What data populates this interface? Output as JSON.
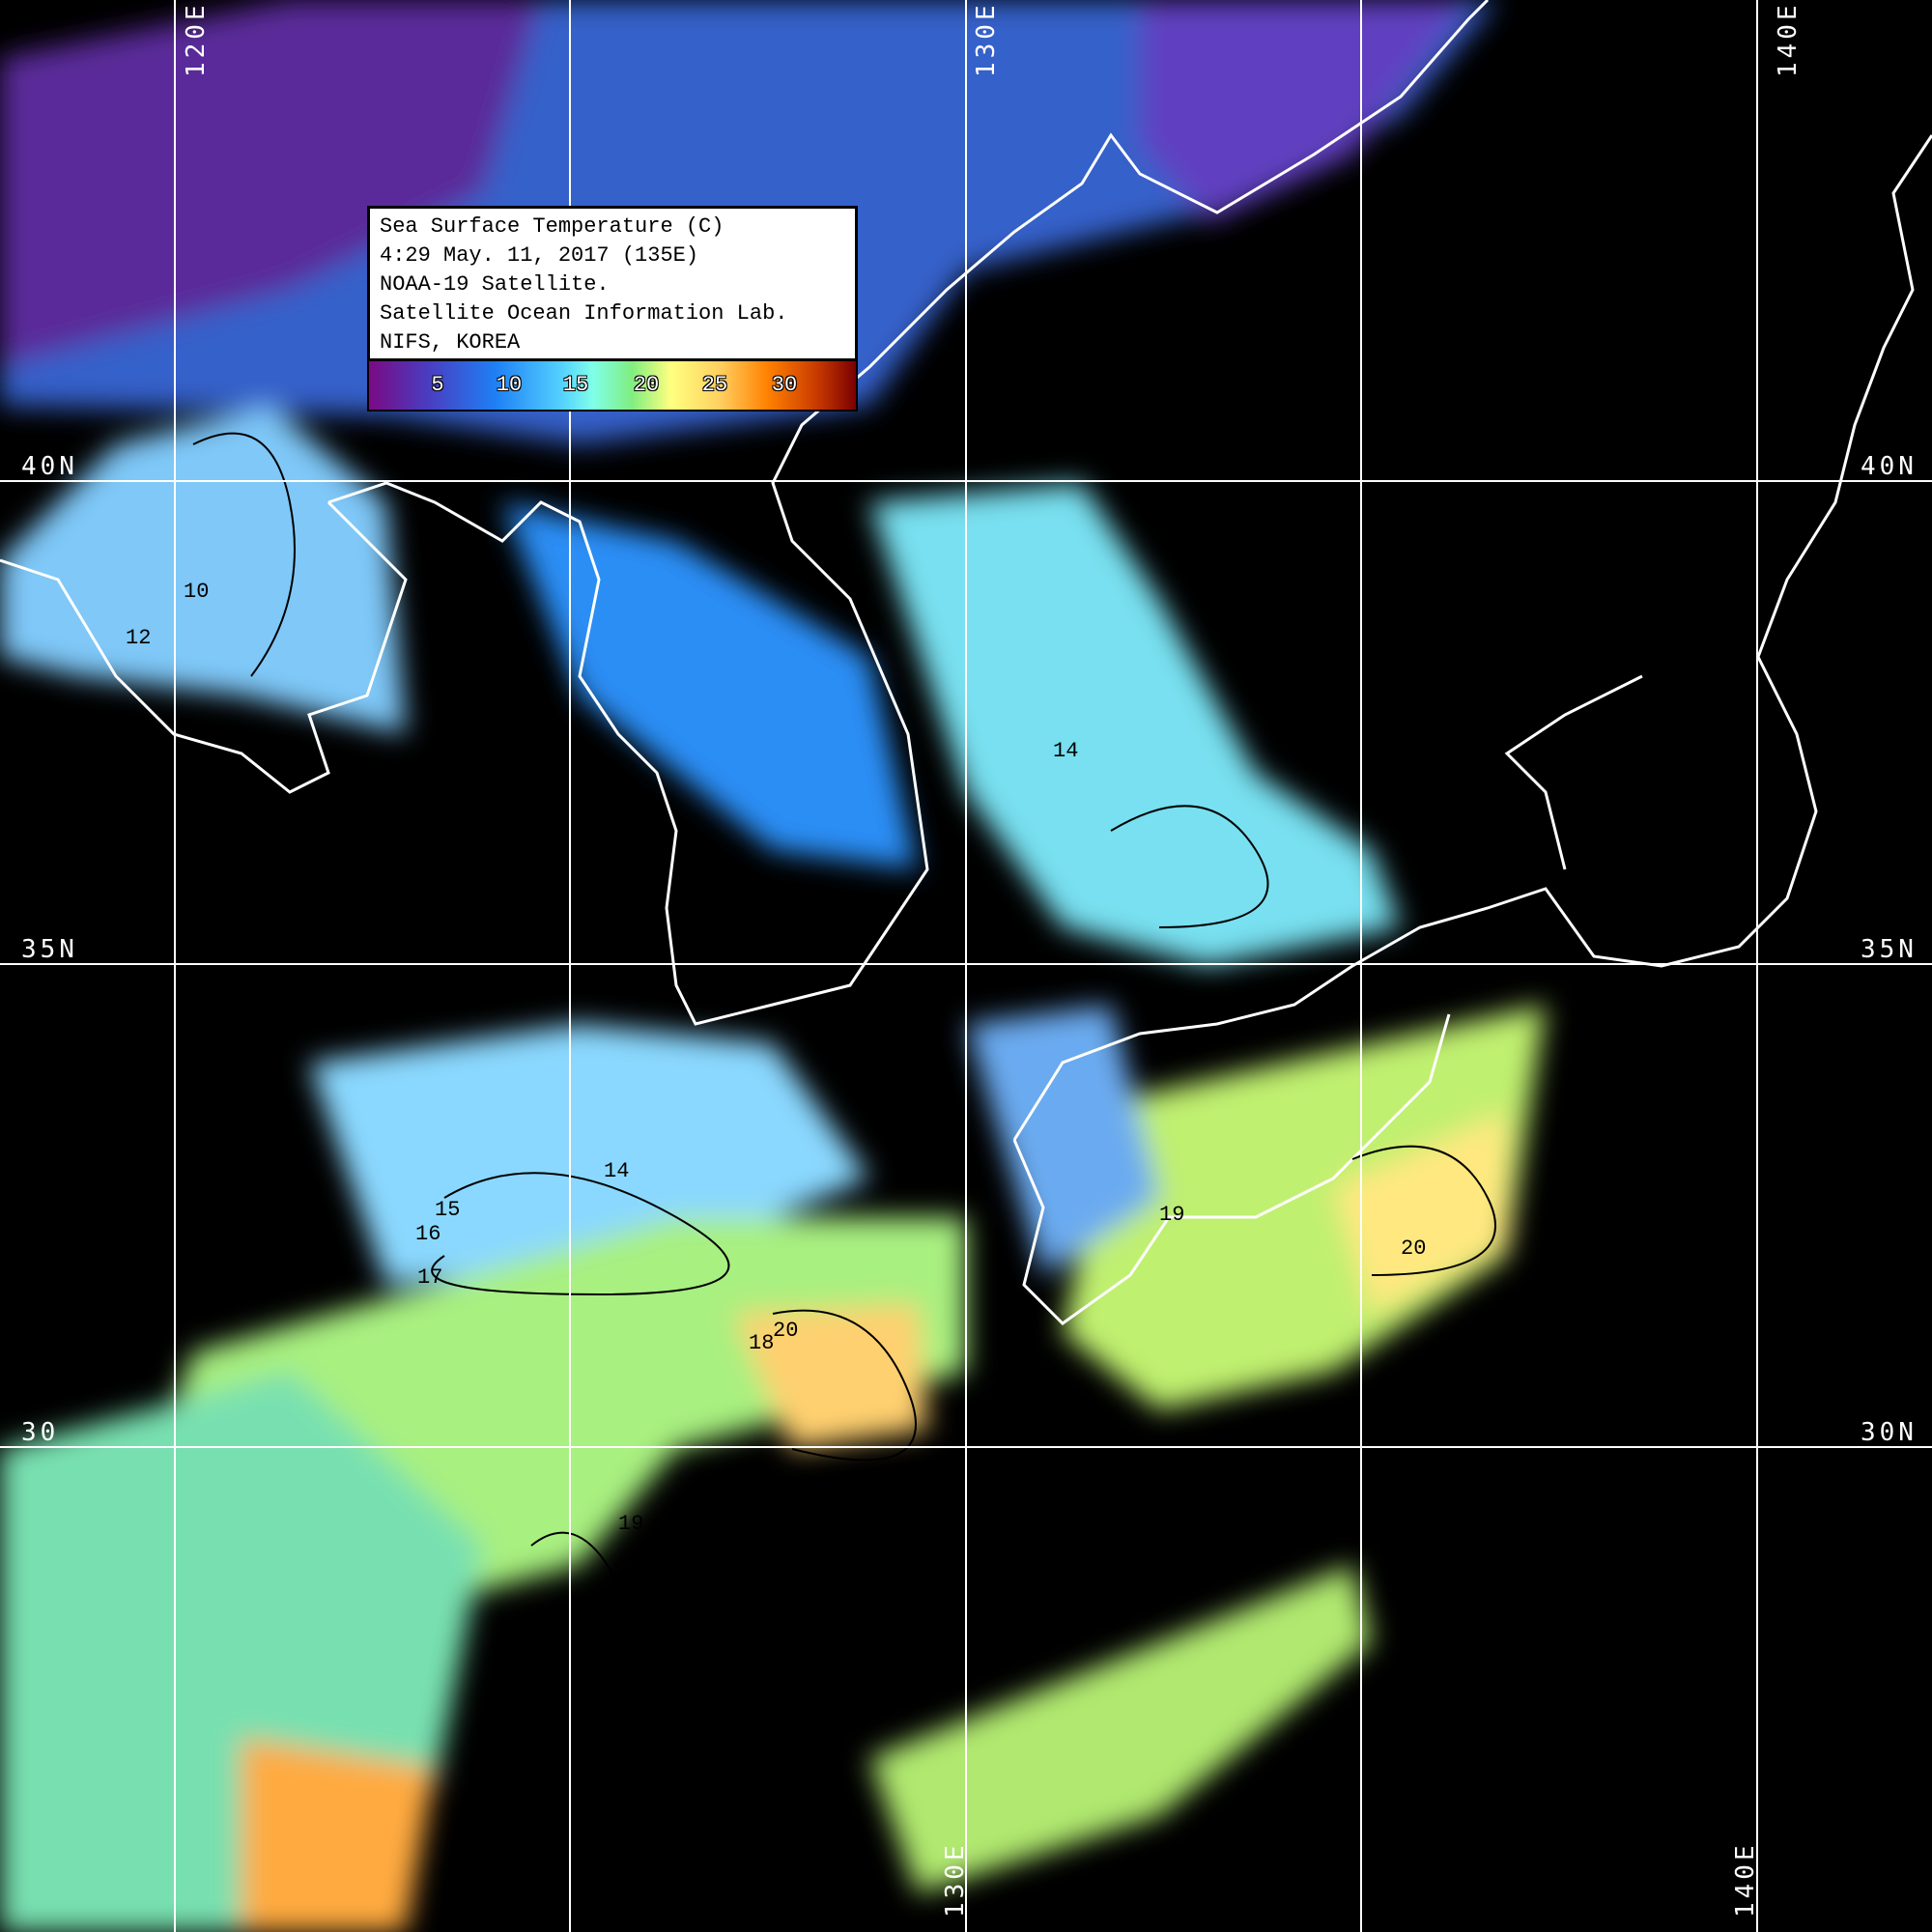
{
  "legend": {
    "lines": [
      "Sea Surface Temperature (C)",
      "4:29 May. 11, 2017 (135E)",
      "NOAA-19 Satellite.",
      "Satellite Ocean Information Lab.",
      "NIFS, KOREA"
    ],
    "colorbar_ticks": [
      "5",
      "10",
      "15",
      "20",
      "25",
      "30"
    ],
    "colors": [
      "#7a0a84",
      "#1e80f5",
      "#80ffe8",
      "#80ee80",
      "#ffff80",
      "#ff8000",
      "#7a0000"
    ]
  },
  "grid": {
    "lon_top": [
      "120E",
      "130E",
      "140E"
    ],
    "lon_bottom": [
      "130E",
      "140E"
    ],
    "lat_left": [
      "40N",
      "35N",
      "30"
    ],
    "lat_right": [
      "40N",
      "35N",
      "30N"
    ]
  },
  "contour_labels": [
    "10",
    "12",
    "15",
    "14",
    "16",
    "17",
    "18",
    "19",
    "20",
    "20",
    "19",
    "14"
  ]
}
